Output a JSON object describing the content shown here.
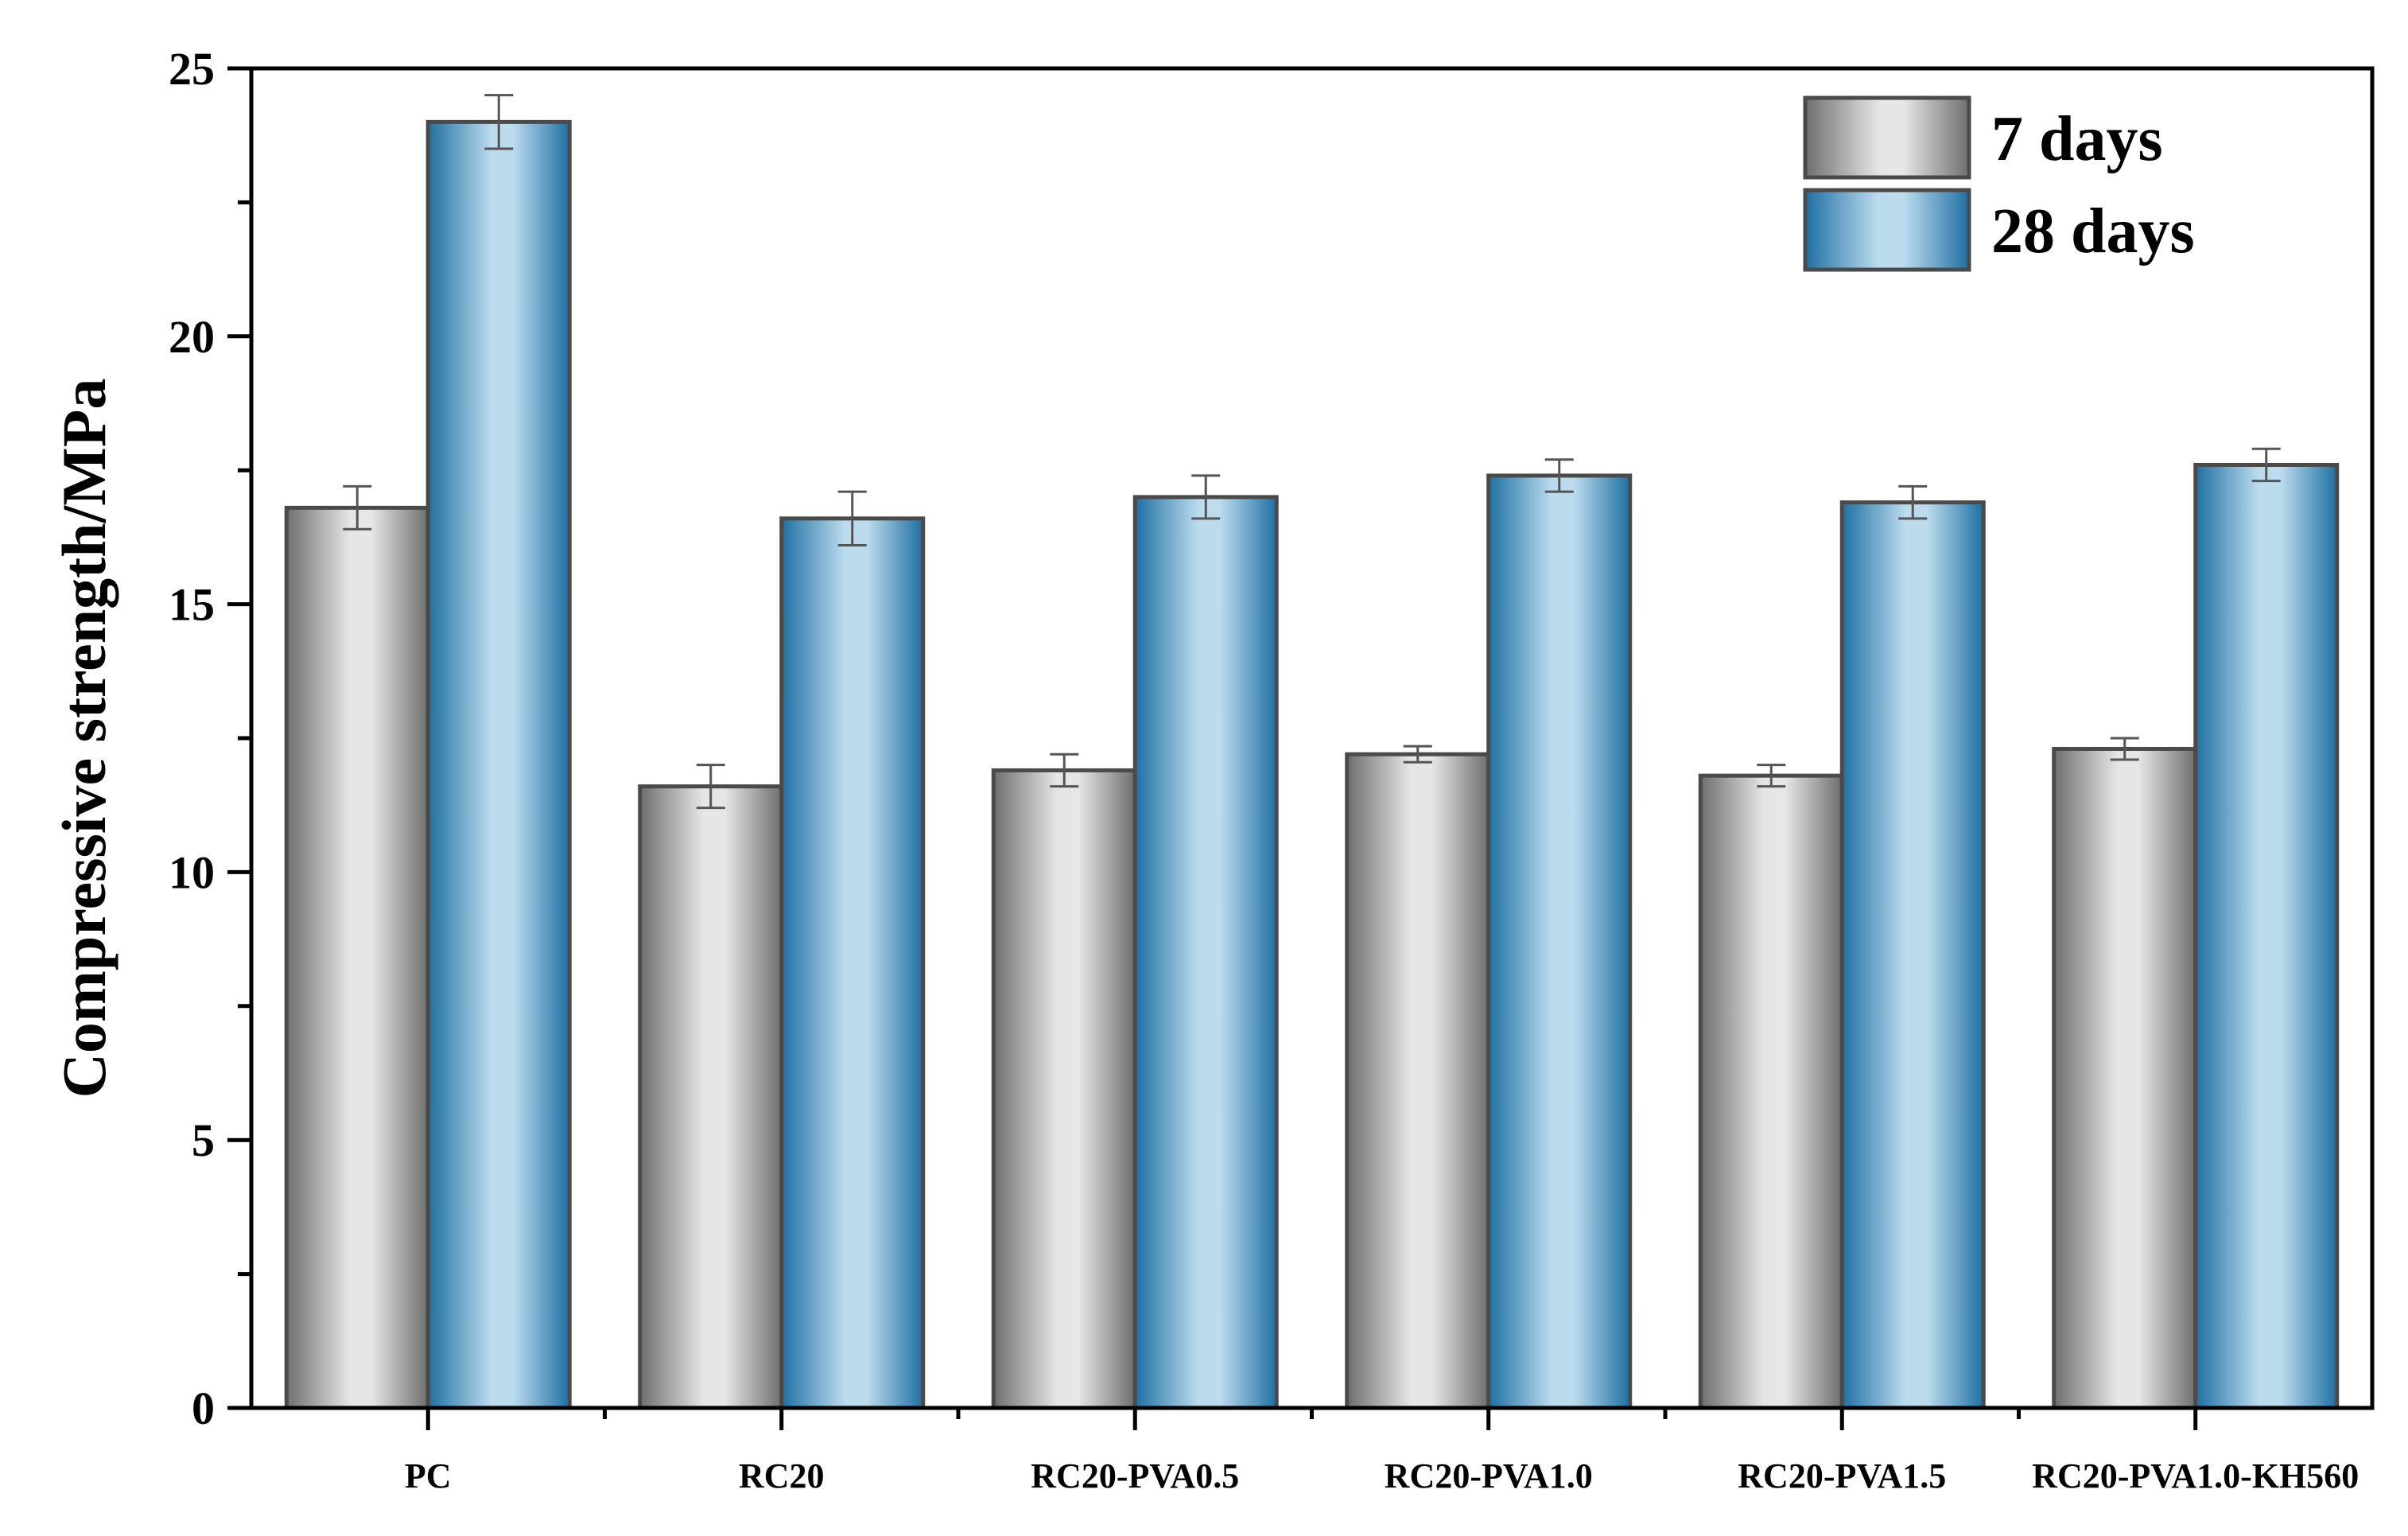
{
  "chart_data": {
    "type": "bar",
    "title": "",
    "xlabel": "",
    "ylabel": "Compressive strength/MPa",
    "ylim": [
      0,
      25
    ],
    "y_ticks": [
      0,
      5,
      10,
      15,
      20,
      25
    ],
    "grid": false,
    "legend_position": "top-right",
    "categories": [
      "PC",
      "RC20",
      "RC20-PVA0.5",
      "RC20-PVA1.0",
      "RC20-PVA1.5",
      "RC20-PVA1.0-KH560"
    ],
    "series": [
      {
        "name": "7 days",
        "values": [
          16.8,
          11.6,
          11.9,
          12.2,
          11.8,
          12.3
        ],
        "errors": [
          0.4,
          0.4,
          0.3,
          0.15,
          0.2,
          0.2
        ],
        "color_edge": "#6e6e6e",
        "color_center": "#e6e6e6"
      },
      {
        "name": "28 days",
        "values": [
          24.0,
          16.6,
          17.0,
          17.4,
          16.9,
          17.6
        ],
        "errors": [
          0.5,
          0.5,
          0.4,
          0.3,
          0.3,
          0.3
        ],
        "color_edge": "#1f6fa3",
        "color_center": "#bcdcee"
      }
    ]
  }
}
